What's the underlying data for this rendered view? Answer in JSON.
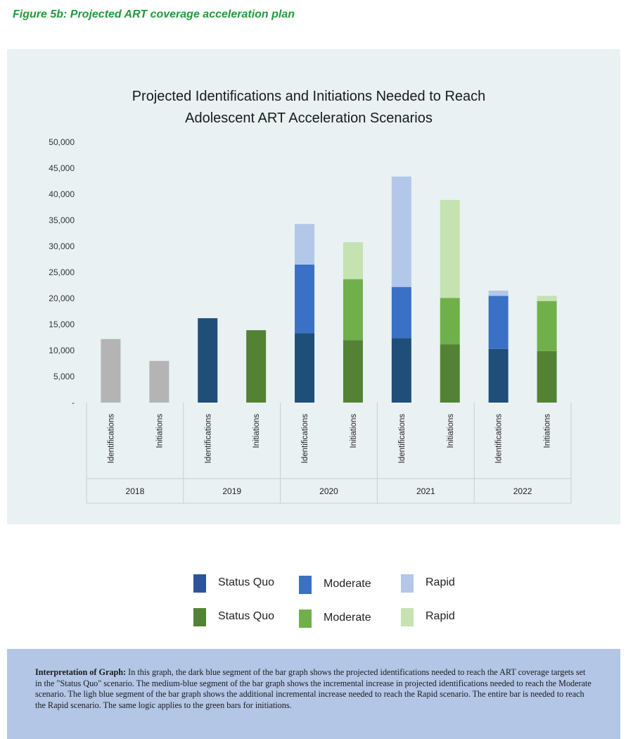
{
  "figure_caption": "Figure 5b:  Projected ART coverage acceleration plan",
  "colors": {
    "panel_bg": "#e9f1f2",
    "baseline_gray": "#b4b4b4",
    "blue_status_quo": "#1f4e79",
    "blue_moderate": "#3a70c5",
    "blue_rapid": "#b3c7e8",
    "green_status_quo": "#548235",
    "green_moderate": "#70b04a",
    "green_rapid": "#c5e2b1",
    "legend_blue_status_quo": "#2d5596"
  },
  "chart_data": {
    "type": "bar",
    "stacked": true,
    "title": "Projected Identifications and Initiations Needed to Reach Adolescent ART Acceleration Scenarios",
    "title_lines": [
      "Projected Identifications and Initiations Needed to Reach",
      "Adolescent ART Acceleration Scenarios"
    ],
    "ylim": [
      0,
      50000
    ],
    "y_ticks": [
      0,
      5000,
      10000,
      15000,
      20000,
      25000,
      30000,
      35000,
      40000,
      45000,
      50000
    ],
    "y_tick_labels": [
      "-",
      "5,000",
      "10,000",
      "15,000",
      "20,000",
      "25,000",
      "30,000",
      "35,000",
      "40,000",
      "45,000",
      "50,000"
    ],
    "grid": false,
    "groups": [
      "2018",
      "2019",
      "2020",
      "2021",
      "2022"
    ],
    "categories": [
      "Identifications",
      "Initiations",
      "Identifications",
      "Initiations",
      "Identifications",
      "Initiations",
      "Identifications",
      "Initiations",
      "Identifications",
      "Initiations"
    ],
    "bars": [
      {
        "group": "2018",
        "category": "Identifications",
        "status_quo": 12200,
        "moderate": 0,
        "rapid": 0,
        "kind": "baseline"
      },
      {
        "group": "2018",
        "category": "Initiations",
        "status_quo": 8000,
        "moderate": 0,
        "rapid": 0,
        "kind": "baseline"
      },
      {
        "group": "2019",
        "category": "Identifications",
        "status_quo": 16200,
        "moderate": 0,
        "rapid": 0,
        "kind": "identifications"
      },
      {
        "group": "2019",
        "category": "Initiations",
        "status_quo": 13900,
        "moderate": 0,
        "rapid": 0,
        "kind": "initiations"
      },
      {
        "group": "2020",
        "category": "Identifications",
        "status_quo": 13300,
        "moderate": 13200,
        "rapid": 7800,
        "kind": "identifications"
      },
      {
        "group": "2020",
        "category": "Initiations",
        "status_quo": 12000,
        "moderate": 11700,
        "rapid": 7100,
        "kind": "initiations"
      },
      {
        "group": "2021",
        "category": "Identifications",
        "status_quo": 12400,
        "moderate": 9800,
        "rapid": 21200,
        "kind": "identifications"
      },
      {
        "group": "2021",
        "category": "Initiations",
        "status_quo": 11200,
        "moderate": 8900,
        "rapid": 18800,
        "kind": "initiations"
      },
      {
        "group": "2022",
        "category": "Identifications",
        "status_quo": 10300,
        "moderate": 10200,
        "rapid": 1000,
        "kind": "identifications"
      },
      {
        "group": "2022",
        "category": "Initiations",
        "status_quo": 9900,
        "moderate": 9600,
        "rapid": 1000,
        "kind": "initiations"
      }
    ]
  },
  "legend": {
    "row1": [
      {
        "label": "Status Quo",
        "color": "#2d5596"
      },
      {
        "label": "Moderate",
        "color": "#3a70c5"
      },
      {
        "label": "Rapid",
        "color": "#b3c7e8"
      }
    ],
    "row2": [
      {
        "label": "Status Quo",
        "color": "#548235"
      },
      {
        "label": "Moderate",
        "color": "#70b04a"
      },
      {
        "label": "Rapid",
        "color": "#c5e2b1"
      }
    ]
  },
  "interpretation": {
    "heading": "Interpretation of Graph:",
    "body": " In this graph, the dark blue segment of the bar graph shows the projected identifications needed to reach the ART coverage targets set in the \"Status Quo\" scenario. The medium-blue segment of the bar graph shows the incremental increase in projected identifications needed to reach the Moderate scenario. The ligh blue segment of the bar graph shows the additional incremental increase needed to reach the Rapid scenario. The entire bar is needed to reach the Rapid scenario. The same logic applies to the green bars for initiations."
  }
}
